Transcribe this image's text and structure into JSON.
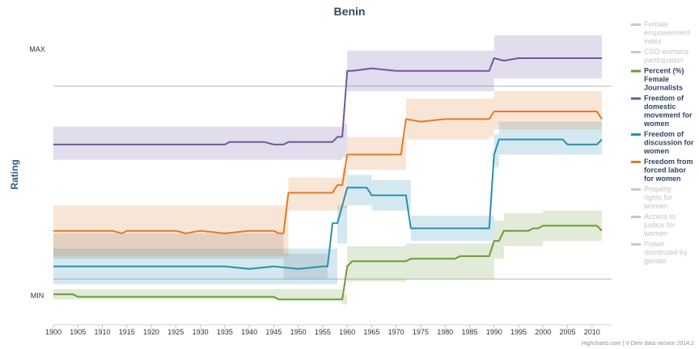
{
  "chart_data": {
    "type": "line",
    "title": "Benin",
    "ylabel": "Rating",
    "y_tick_labels": [
      "MAX",
      "MIN"
    ],
    "xlim": [
      1900,
      2014
    ],
    "x_ticks": [
      1900,
      1905,
      1910,
      1915,
      1920,
      1925,
      1930,
      1935,
      1940,
      1945,
      1950,
      1955,
      1960,
      1965,
      1970,
      1975,
      1980,
      1985,
      1990,
      1995,
      2000,
      2005,
      2010
    ],
    "ylim": [
      -0.12,
      1.07
    ],
    "credit": "Highcharts.com | V-Dem data version 2014.2",
    "legend_position": "right",
    "series": [
      {
        "name": "Female empowerment index",
        "color": "#bbbbbb",
        "visible": false,
        "points": []
      },
      {
        "name": "CSO womens participation",
        "color": "#cccccc",
        "visible": false,
        "points": []
      },
      {
        "name": "Percent (%) Female Journalists",
        "color": "#6b9b37",
        "visible": true,
        "points": [
          [
            1900,
            0.0
          ],
          [
            1904,
            0.0
          ],
          [
            1905,
            -0.01
          ],
          [
            1945,
            -0.01
          ],
          [
            1946,
            -0.02
          ],
          [
            1959,
            -0.02
          ],
          [
            1960,
            0.11
          ],
          [
            1961,
            0.13
          ],
          [
            1972,
            0.13
          ],
          [
            1973,
            0.14
          ],
          [
            1982,
            0.14
          ],
          [
            1983,
            0.15
          ],
          [
            1989,
            0.15
          ],
          [
            1990,
            0.21
          ],
          [
            1991,
            0.21
          ],
          [
            1992,
            0.25
          ],
          [
            1997,
            0.25
          ],
          [
            1998,
            0.26
          ],
          [
            1999,
            0.26
          ],
          [
            2000,
            0.27
          ],
          [
            2011,
            0.27
          ],
          [
            2012,
            0.25
          ]
        ],
        "band": [
          [
            1900,
            -0.02,
            0.02
          ],
          [
            1959,
            -0.04,
            0.0
          ],
          [
            1960,
            0.05,
            0.19
          ],
          [
            1972,
            0.06,
            0.2
          ],
          [
            1990,
            0.14,
            0.29
          ],
          [
            1992,
            0.19,
            0.32
          ],
          [
            2000,
            0.21,
            0.33
          ],
          [
            2012,
            0.2,
            0.32
          ]
        ]
      },
      {
        "name": "Freedom of domestic movement for women",
        "color": "#7057a0",
        "visible": true,
        "points": [
          [
            1900,
            0.59
          ],
          [
            1935,
            0.59
          ],
          [
            1936,
            0.6
          ],
          [
            1943,
            0.6
          ],
          [
            1945,
            0.59
          ],
          [
            1947,
            0.59
          ],
          [
            1948,
            0.6
          ],
          [
            1957,
            0.6
          ],
          [
            1958,
            0.62
          ],
          [
            1959,
            0.62
          ],
          [
            1960,
            0.88
          ],
          [
            1961,
            0.88
          ],
          [
            1965,
            0.89
          ],
          [
            1970,
            0.88
          ],
          [
            1985,
            0.88
          ],
          [
            1988,
            0.88
          ],
          [
            1989,
            0.88
          ],
          [
            1990,
            0.93
          ],
          [
            1992,
            0.92
          ],
          [
            1995,
            0.93
          ],
          [
            2005,
            0.93
          ],
          [
            2012,
            0.93
          ]
        ],
        "band": [
          [
            1900,
            0.53,
            0.66
          ],
          [
            1959,
            0.54,
            0.67
          ],
          [
            1960,
            0.8,
            0.96
          ],
          [
            1989,
            0.8,
            0.96
          ],
          [
            1990,
            0.85,
            1.02
          ],
          [
            2012,
            0.85,
            1.02
          ]
        ]
      },
      {
        "name": "Freedom of discussion for women",
        "color": "#2a8fb0",
        "visible": true,
        "points": [
          [
            1900,
            0.11
          ],
          [
            1903,
            0.11
          ],
          [
            1905,
            0.11
          ],
          [
            1910,
            0.11
          ],
          [
            1915,
            0.11
          ],
          [
            1920,
            0.11
          ],
          [
            1925,
            0.11
          ],
          [
            1930,
            0.11
          ],
          [
            1935,
            0.11
          ],
          [
            1940,
            0.1
          ],
          [
            1945,
            0.11
          ],
          [
            1950,
            0.1
          ],
          [
            1955,
            0.11
          ],
          [
            1956,
            0.11
          ],
          [
            1957,
            0.28
          ],
          [
            1958,
            0.28
          ],
          [
            1960,
            0.42
          ],
          [
            1961,
            0.42
          ],
          [
            1964,
            0.42
          ],
          [
            1965,
            0.39
          ],
          [
            1972,
            0.39
          ],
          [
            1973,
            0.26
          ],
          [
            1988,
            0.26
          ],
          [
            1989,
            0.26
          ],
          [
            1990,
            0.55
          ],
          [
            1991,
            0.61
          ],
          [
            1993,
            0.61
          ],
          [
            2000,
            0.61
          ],
          [
            2004,
            0.61
          ],
          [
            2005,
            0.59
          ],
          [
            2011,
            0.59
          ],
          [
            2012,
            0.61
          ]
        ],
        "band": [
          [
            1900,
            0.04,
            0.18
          ],
          [
            1957,
            0.04,
            0.18
          ],
          [
            1958,
            0.2,
            0.35
          ],
          [
            1960,
            0.35,
            0.47
          ],
          [
            1965,
            0.33,
            0.45
          ],
          [
            1972,
            0.33,
            0.45
          ],
          [
            1973,
            0.21,
            0.31
          ],
          [
            1989,
            0.21,
            0.31
          ],
          [
            1990,
            0.5,
            0.63
          ],
          [
            1991,
            0.55,
            0.68
          ],
          [
            2012,
            0.52,
            0.67
          ]
        ]
      },
      {
        "name": "Freedom from forced labor for women",
        "color": "#e07b2b",
        "visible": true,
        "points": [
          [
            1900,
            0.25
          ],
          [
            1905,
            0.25
          ],
          [
            1910,
            0.25
          ],
          [
            1912,
            0.25
          ],
          [
            1914,
            0.24
          ],
          [
            1915,
            0.25
          ],
          [
            1920,
            0.25
          ],
          [
            1925,
            0.25
          ],
          [
            1927,
            0.24
          ],
          [
            1930,
            0.25
          ],
          [
            1935,
            0.24
          ],
          [
            1940,
            0.25
          ],
          [
            1945,
            0.25
          ],
          [
            1946,
            0.24
          ],
          [
            1947,
            0.24
          ],
          [
            1948,
            0.4
          ],
          [
            1955,
            0.4
          ],
          [
            1957,
            0.4
          ],
          [
            1958,
            0.43
          ],
          [
            1959,
            0.43
          ],
          [
            1960,
            0.55
          ],
          [
            1961,
            0.55
          ],
          [
            1965,
            0.55
          ],
          [
            1968,
            0.55
          ],
          [
            1970,
            0.55
          ],
          [
            1971,
            0.55
          ],
          [
            1972,
            0.69
          ],
          [
            1975,
            0.68
          ],
          [
            1980,
            0.69
          ],
          [
            1985,
            0.69
          ],
          [
            1989,
            0.69
          ],
          [
            1990,
            0.72
          ],
          [
            1992,
            0.72
          ],
          [
            1995,
            0.72
          ],
          [
            2000,
            0.72
          ],
          [
            2010,
            0.72
          ],
          [
            2011,
            0.72
          ],
          [
            2012,
            0.69
          ]
        ],
        "band": [
          [
            1900,
            0.15,
            0.35
          ],
          [
            1947,
            0.15,
            0.35
          ],
          [
            1948,
            0.33,
            0.46
          ],
          [
            1959,
            0.34,
            0.5
          ],
          [
            1960,
            0.49,
            0.62
          ],
          [
            1971,
            0.49,
            0.62
          ],
          [
            1972,
            0.61,
            0.77
          ],
          [
            1989,
            0.62,
            0.77
          ],
          [
            1990,
            0.65,
            0.8
          ],
          [
            2012,
            0.62,
            0.79
          ]
        ]
      },
      {
        "name": "Property rights for women",
        "color": "#cccccc",
        "visible": false,
        "points": []
      },
      {
        "name": "Access to justice for women",
        "color": "#cccccc",
        "visible": false,
        "points": []
      },
      {
        "name": "Power distributed by gender",
        "color": "#cccccc",
        "visible": false,
        "points": []
      }
    ],
    "reference_lines": [
      {
        "kind": "upper_reference",
        "value": 0.82
      },
      {
        "kind": "lower_reference",
        "value": 0.06
      }
    ],
    "grey_band": {
      "points": [
        [
          1900,
          0.14,
          0.24
        ],
        [
          1946,
          0.14,
          0.24
        ],
        [
          1947,
          0.06,
          0.16
        ],
        [
          1956,
          0.06,
          0.16
        ]
      ]
    }
  }
}
